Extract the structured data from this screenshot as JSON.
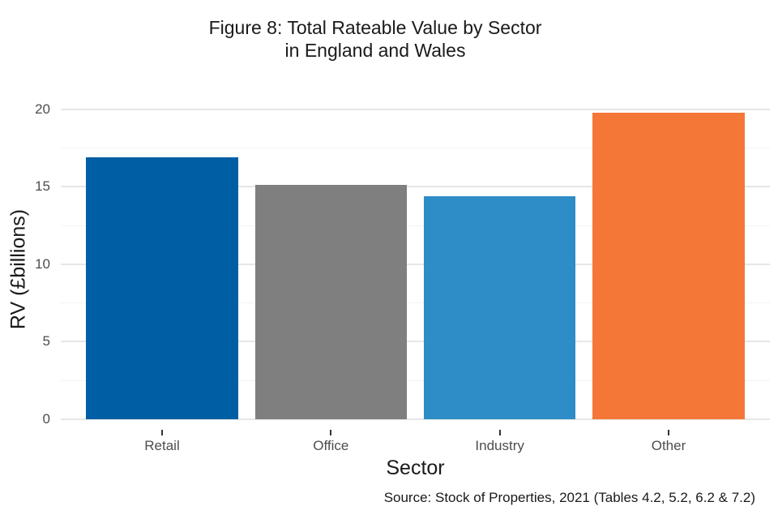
{
  "figure": {
    "title_line1": "Figure 8: Total Rateable Value by Sector",
    "title_line2": "in England and Wales",
    "y_axis_title": "RV (£billions)",
    "x_axis_title": "Sector",
    "caption": "Source: Stock of Properties, 2021 (Tables 4.2, 5.2, 6.2 & 7.2)"
  },
  "chart_data": {
    "type": "bar",
    "title": "Figure 8: Total Rateable Value by Sector in England and Wales",
    "categories": [
      "Retail",
      "Office",
      "Industry",
      "Other"
    ],
    "values": [
      16.9,
      15.1,
      14.4,
      19.8
    ],
    "bar_colors": [
      "#005EA5",
      "#7F7F7F",
      "#2E8CC6",
      "#F47738"
    ],
    "xlabel": "Sector",
    "ylabel": "RV (£billions)",
    "ylim": [
      0,
      21.3
    ],
    "yticks": [
      0,
      5,
      10,
      15,
      20
    ],
    "yticks_minor": [
      2.5,
      7.5,
      12.5,
      17.5
    ],
    "grid": "horizontal major and minor, light gray, no axis lines",
    "legend": "none",
    "source": "Source: Stock of Properties, 2021 (Tables 4.2, 5.2, 6.2 & 7.2)"
  },
  "colors": {
    "background": "#ffffff",
    "major_grid": "#e6e6e6",
    "minor_grid": "#f3f3f3",
    "tick_mark": "#333333",
    "tick_label": "#4d4d4d",
    "text": "#1a1a1a"
  }
}
